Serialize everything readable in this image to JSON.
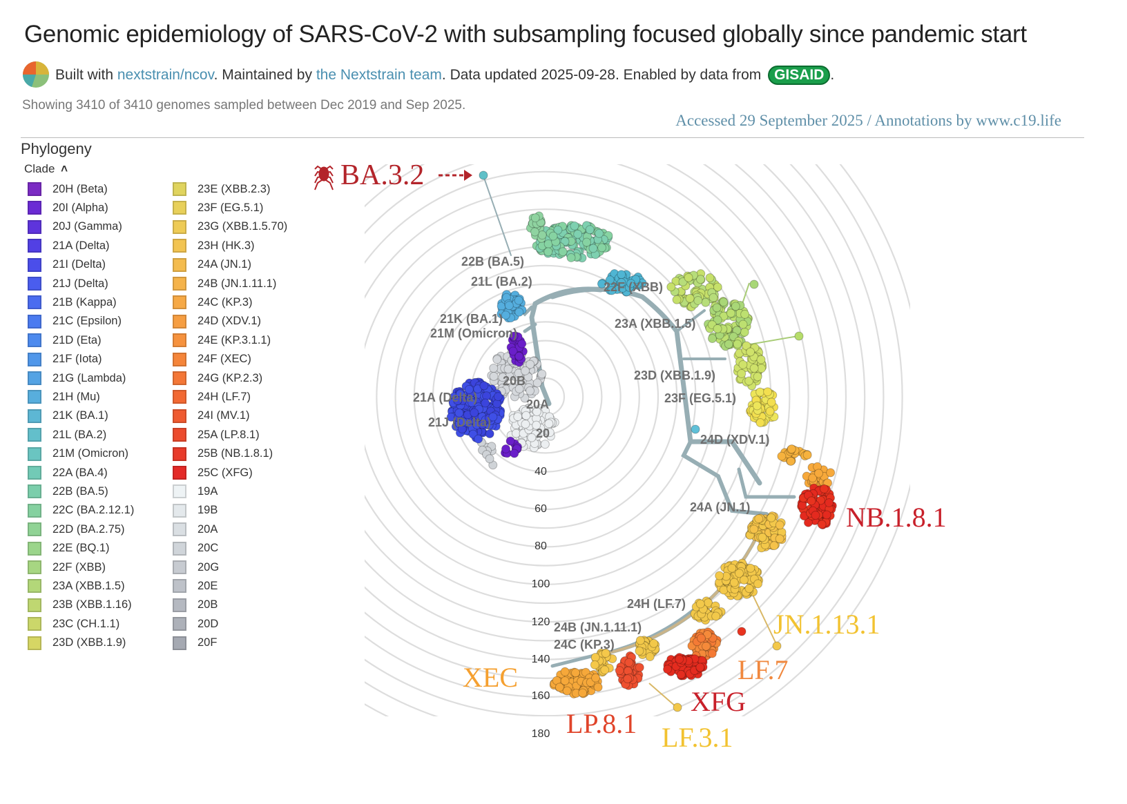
{
  "header": {
    "title": "Genomic epidemiology of SARS-CoV-2 with subsampling focused globally since pandemic start",
    "built_with": "Built with ",
    "repo_link": "nextstrain/ncov",
    "maintained_by": ". Maintained by ",
    "team_link": "the Nextstrain team",
    "data_updated": ". Data updated 2025-09-28. Enabled by data from ",
    "gisaid": "GISAID",
    "period": ".",
    "showing": "Showing 3410 of 3410 genomes sampled between Dec 2019 and Sep 2025.",
    "accessed": "Accessed 29 September 2025 / Annotations by www.c19.life"
  },
  "panel": {
    "title": "Phylogeny",
    "legend_label": "Clade",
    "legend_toggle_icon": "chevron-up-icon"
  },
  "legend": [
    {
      "label": "20H (Beta)",
      "color": "#7B2BC4"
    },
    {
      "label": "20I (Alpha)",
      "color": "#6B2BD4"
    },
    {
      "label": "20J (Gamma)",
      "color": "#5E34DC"
    },
    {
      "label": "21A (Delta)",
      "color": "#5240E4"
    },
    {
      "label": "21I (Delta)",
      "color": "#4B4EEA"
    },
    {
      "label": "21J (Delta)",
      "color": "#4A5DEE"
    },
    {
      "label": "21B (Kappa)",
      "color": "#4A6CF0"
    },
    {
      "label": "21C (Epsilon)",
      "color": "#4B7BF0"
    },
    {
      "label": "21D (Eta)",
      "color": "#4D8AEE"
    },
    {
      "label": "21F (Iota)",
      "color": "#5097EA"
    },
    {
      "label": "21G (Lambda)",
      "color": "#54A3E4"
    },
    {
      "label": "21H (Mu)",
      "color": "#58AEDD"
    },
    {
      "label": "21K (BA.1)",
      "color": "#5DB7D4"
    },
    {
      "label": "21L (BA.2)",
      "color": "#63BFCB"
    },
    {
      "label": "21M (Omicron)",
      "color": "#6AC5C1"
    },
    {
      "label": "22A (BA.4)",
      "color": "#72CAB6"
    },
    {
      "label": "22B (BA.5)",
      "color": "#7BCEAB"
    },
    {
      "label": "22C (BA.2.12.1)",
      "color": "#85D1A0"
    },
    {
      "label": "22D (BA.2.75)",
      "color": "#90D395"
    },
    {
      "label": "22E (BQ.1)",
      "color": "#9BD58B"
    },
    {
      "label": "22F (XBB)",
      "color": "#A7D682"
    },
    {
      "label": "23A (XBB.1.5)",
      "color": "#B3D779"
    },
    {
      "label": "23B (XBB.1.16)",
      "color": "#BFD771"
    },
    {
      "label": "23C (CH.1.1)",
      "color": "#CBD76A"
    },
    {
      "label": "23D (XBB.1.9)",
      "color": "#D6D664"
    },
    {
      "label": "23E (XBB.2.3)",
      "color": "#E0D45E"
    },
    {
      "label": "23F (EG.5.1)",
      "color": "#E8D05A"
    },
    {
      "label": "23G (XBB.1.5.70)",
      "color": "#EECB56"
    },
    {
      "label": "23H (HK.3)",
      "color": "#F2C452"
    },
    {
      "label": "24A (JN.1)",
      "color": "#F4BC4E"
    },
    {
      "label": "24B (JN.1.11.1)",
      "color": "#F5B34A"
    },
    {
      "label": "24C (KP.3)",
      "color": "#F6A946"
    },
    {
      "label": "24D (XDV.1)",
      "color": "#F69E42"
    },
    {
      "label": "24E (KP.3.1.1)",
      "color": "#F6923E"
    },
    {
      "label": "24F (XEC)",
      "color": "#F5853A"
    },
    {
      "label": "24G (KP.2.3)",
      "color": "#F47737"
    },
    {
      "label": "24H (LF.7)",
      "color": "#F26933"
    },
    {
      "label": "24I (MV.1)",
      "color": "#EF5A30"
    },
    {
      "label": "25A (LP.8.1)",
      "color": "#EC4B2D"
    },
    {
      "label": "25B (NB.1.8.1)",
      "color": "#E83B2A"
    },
    {
      "label": "25C (XFG)",
      "color": "#E42A27"
    },
    {
      "label": "19A",
      "color": "#EEF3F5"
    },
    {
      "label": "19B",
      "color": "#E4E9EC"
    },
    {
      "label": "20A",
      "color": "#DADFE3"
    },
    {
      "label": "20C",
      "color": "#D0D5DA"
    },
    {
      "label": "20G",
      "color": "#C7CBD1"
    },
    {
      "label": "20E",
      "color": "#BEC2C9"
    },
    {
      "label": "20B",
      "color": "#B5B9C1"
    },
    {
      "label": "20D",
      "color": "#ADB1B9"
    },
    {
      "label": "20F",
      "color": "#A5A9B2"
    }
  ],
  "tree": {
    "axis_ticks": [
      "40",
      "60",
      "80",
      "100",
      "120",
      "140",
      "160",
      "180"
    ],
    "clade_labels": [
      "22B (BA.5)",
      "21L (BA.2)",
      "21K (BA.1)",
      "21M (Omicron)",
      "22F (XBB)",
      "23A (XBB.1.5)",
      "23D (XBB.1.9)",
      "23F (EG.5.1)",
      "24D (XDV.1)",
      "24A (JN.1)",
      "24H (LF.7)",
      "24B (JN.1.11.1)",
      "24C (KP.3)",
      "21A (Delta)",
      "21J (Delta)",
      "20B",
      "20A",
      "20"
    ],
    "annotations": [
      {
        "label": "BA.3.2",
        "color": "#B3242A",
        "icon": "spider-icon"
      },
      {
        "label": "NB.1.8.1",
        "color": "#C8202A"
      },
      {
        "label": "JN.1.13.1",
        "color": "#F2C230"
      },
      {
        "label": "LF.7",
        "color": "#F0883E"
      },
      {
        "label": "XFG",
        "color": "#C8202A"
      },
      {
        "label": "XEC",
        "color": "#F5A030"
      },
      {
        "label": "LP.8.1",
        "color": "#E0442A"
      },
      {
        "label": "LF.3.1",
        "color": "#F2C230"
      }
    ]
  }
}
